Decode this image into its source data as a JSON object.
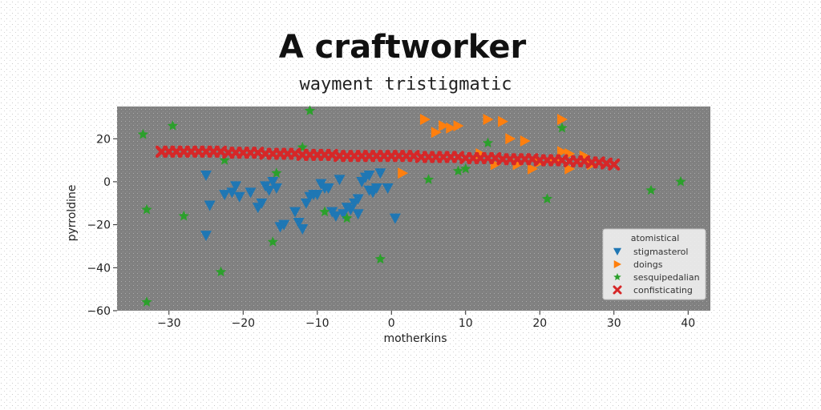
{
  "chart_data": {
    "type": "scatter",
    "title": "A craftworker",
    "subtitle": "wayment tristigmatic",
    "xlabel": "motherkins",
    "ylabel": "pyrroldine",
    "xlim": [
      -37,
      43
    ],
    "ylim": [
      -60,
      35
    ],
    "xticks": [
      -30,
      -20,
      -10,
      0,
      10,
      20,
      30,
      40
    ],
    "yticks": [
      -60,
      -40,
      -20,
      0,
      20
    ],
    "grid": false,
    "legend": {
      "title": "atomistical",
      "placement": "lower-right"
    },
    "colors": {
      "plot_bg": "#808080",
      "page_bg": "#ffffff"
    },
    "series": [
      {
        "name": "stigmasterol",
        "marker": "triangle-down",
        "color": "#1f77b4",
        "points": [
          [
            -25,
            3
          ],
          [
            -24.5,
            -11
          ],
          [
            -25,
            -25
          ],
          [
            -22.5,
            -6
          ],
          [
            -21.5,
            -5
          ],
          [
            -21,
            -2
          ],
          [
            -20.5,
            -7
          ],
          [
            -19,
            -5
          ],
          [
            -18,
            -12
          ],
          [
            -17.5,
            -10
          ],
          [
            -17,
            -2
          ],
          [
            -16.5,
            -4
          ],
          [
            -16,
            0
          ],
          [
            -15.5,
            -3
          ],
          [
            -15,
            -21
          ],
          [
            -14.5,
            -20
          ],
          [
            -13,
            -14
          ],
          [
            -12.5,
            -19
          ],
          [
            -12,
            -22
          ],
          [
            -11.5,
            -10
          ],
          [
            -11,
            -7
          ],
          [
            -10.5,
            -6
          ],
          [
            -10,
            -6
          ],
          [
            -9.5,
            -1
          ],
          [
            -9,
            -3
          ],
          [
            -8.5,
            -3
          ],
          [
            -8,
            -14
          ],
          [
            -7.5,
            -16
          ],
          [
            -7,
            1
          ],
          [
            -6.5,
            -15
          ],
          [
            -6,
            -12
          ],
          [
            -5.5,
            -13
          ],
          [
            -5,
            -10
          ],
          [
            -4.5,
            -8
          ],
          [
            -4,
            0
          ],
          [
            -3.5,
            2
          ],
          [
            -3,
            -4
          ],
          [
            -2.5,
            -5
          ],
          [
            -2,
            -3
          ],
          [
            -1.5,
            4
          ],
          [
            -0.5,
            -3
          ],
          [
            0.5,
            -17
          ],
          [
            -3,
            3
          ],
          [
            -4.5,
            -15
          ]
        ]
      },
      {
        "name": "doings",
        "marker": "triangle-right",
        "color": "#ff7f0e",
        "points": [
          [
            1.5,
            4
          ],
          [
            4.5,
            29
          ],
          [
            6,
            23
          ],
          [
            7,
            26
          ],
          [
            8,
            25
          ],
          [
            9,
            26
          ],
          [
            12,
            13
          ],
          [
            13,
            29
          ],
          [
            14,
            8
          ],
          [
            15,
            28
          ],
          [
            16,
            20
          ],
          [
            17,
            8
          ],
          [
            18,
            19
          ],
          [
            19,
            6
          ],
          [
            20,
            9
          ],
          [
            22,
            10
          ],
          [
            23,
            29
          ],
          [
            23,
            14
          ],
          [
            24,
            13
          ],
          [
            24,
            6
          ],
          [
            26,
            12
          ],
          [
            27,
            8
          ]
        ]
      },
      {
        "name": "sesquipedalian",
        "marker": "star",
        "color": "#2ca02c",
        "points": [
          [
            -33.5,
            22
          ],
          [
            -33,
            -13
          ],
          [
            -33,
            -56
          ],
          [
            -29.5,
            26
          ],
          [
            -28,
            -16
          ],
          [
            -23,
            -42
          ],
          [
            -22.5,
            10
          ],
          [
            -16,
            -28
          ],
          [
            -15.5,
            4
          ],
          [
            -12,
            16
          ],
          [
            -11,
            33
          ],
          [
            -9,
            -14
          ],
          [
            -6,
            -17
          ],
          [
            -1.5,
            -36
          ],
          [
            5,
            1
          ],
          [
            9,
            5
          ],
          [
            10,
            6
          ],
          [
            13,
            18
          ],
          [
            21,
            -8
          ],
          [
            23,
            25
          ],
          [
            35,
            -4
          ],
          [
            39,
            0
          ]
        ]
      },
      {
        "name": "confisticating",
        "marker": "x",
        "color": "#d62728",
        "points": [
          [
            -31,
            14
          ],
          [
            -30,
            14
          ],
          [
            -29,
            14
          ],
          [
            -28,
            14
          ],
          [
            -27,
            14
          ],
          [
            -26,
            14
          ],
          [
            -25,
            14
          ],
          [
            -24,
            14
          ],
          [
            -23,
            14
          ],
          [
            -22,
            13.5
          ],
          [
            -21,
            13.5
          ],
          [
            -20,
            13.5
          ],
          [
            -19,
            13.5
          ],
          [
            -18,
            13.5
          ],
          [
            -17,
            13
          ],
          [
            -16,
            13
          ],
          [
            -15,
            13
          ],
          [
            -14,
            13
          ],
          [
            -13,
            13
          ],
          [
            -12,
            12.5
          ],
          [
            -11,
            12.5
          ],
          [
            -10,
            12.5
          ],
          [
            -9,
            12.5
          ],
          [
            -8,
            12.5
          ],
          [
            -7,
            12
          ],
          [
            -6,
            12
          ],
          [
            -5,
            12
          ],
          [
            -4,
            12
          ],
          [
            -3,
            12
          ],
          [
            -2,
            12
          ],
          [
            -1,
            12
          ],
          [
            0,
            12
          ],
          [
            1,
            12
          ],
          [
            2,
            12
          ],
          [
            3,
            12
          ],
          [
            4,
            11.5
          ],
          [
            5,
            11.5
          ],
          [
            6,
            11.5
          ],
          [
            7,
            11.5
          ],
          [
            8,
            11.5
          ],
          [
            9,
            11.5
          ],
          [
            10,
            11
          ],
          [
            11,
            11
          ],
          [
            12,
            11
          ],
          [
            13,
            11
          ],
          [
            14,
            11
          ],
          [
            15,
            10.5
          ],
          [
            16,
            10.5
          ],
          [
            17,
            10.5
          ],
          [
            18,
            10.5
          ],
          [
            19,
            10.5
          ],
          [
            20,
            10
          ],
          [
            21,
            10
          ],
          [
            22,
            10
          ],
          [
            23,
            10
          ],
          [
            24,
            9.5
          ],
          [
            25,
            9.5
          ],
          [
            26,
            9.5
          ],
          [
            27,
            9
          ],
          [
            28,
            9
          ],
          [
            29,
            8.5
          ],
          [
            30,
            8
          ]
        ]
      }
    ]
  }
}
